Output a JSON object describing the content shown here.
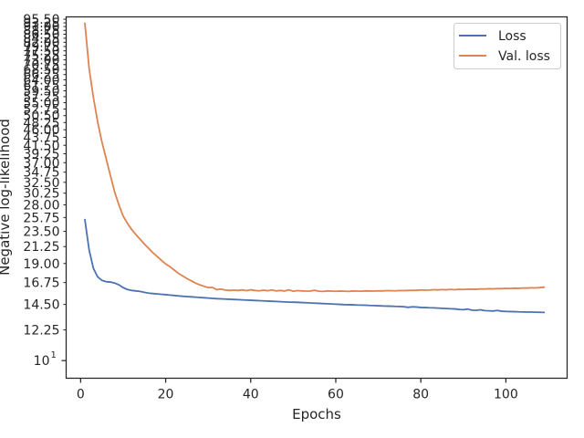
{
  "chart_data": {
    "type": "line",
    "xlabel": "Epochs",
    "ylabel": "Negative log-likelihood",
    "y_scale": "log",
    "xlim": [
      -3.4,
      114.4
    ],
    "ylim": [
      8.9,
      97.0
    ],
    "x_ticks": [
      0,
      20,
      40,
      60,
      80,
      100
    ],
    "y_tick_labels": [
      "95.50",
      "93.25",
      "91.00",
      "88.75",
      "86.50",
      "84.25",
      "82.00",
      "79.75",
      "77.50",
      "75.25",
      "73.00",
      "70.75",
      "68.50",
      "66.25",
      "64.00",
      "61.75",
      "59.50",
      "57.25",
      "55.00",
      "52.75",
      "50.50",
      "48.25",
      "46.00",
      "43.75",
      "41.50",
      "39.25",
      "37.00",
      "34.75",
      "32.50",
      "30.25",
      "28.00",
      "25.75",
      "23.50",
      "21.25",
      "19.00",
      "16.75",
      "14.50",
      "12.25"
    ],
    "y_major_label": "10",
    "y_major_label_exp": "1",
    "legend_position": "upper right",
    "grid": false,
    "series": [
      {
        "name": "Loss",
        "color": "#4c72b0",
        "x": [
          1,
          2,
          3,
          4,
          5,
          6,
          7,
          8,
          9,
          10,
          11,
          12,
          13,
          14,
          15,
          16,
          17,
          18,
          19,
          20,
          21,
          22,
          23,
          24,
          25,
          26,
          27,
          28,
          29,
          30,
          31,
          32,
          33,
          34,
          35,
          36,
          37,
          38,
          39,
          40,
          41,
          42,
          43,
          44,
          45,
          46,
          47,
          48,
          49,
          50,
          51,
          52,
          53,
          54,
          55,
          56,
          57,
          58,
          59,
          60,
          61,
          62,
          63,
          64,
          65,
          66,
          67,
          68,
          69,
          70,
          71,
          72,
          73,
          74,
          75,
          76,
          77,
          78,
          79,
          80,
          81,
          82,
          83,
          84,
          85,
          86,
          87,
          88,
          89,
          90,
          91,
          92,
          93,
          94,
          95,
          96,
          97,
          98,
          99,
          100,
          101,
          102,
          103,
          104,
          105,
          106,
          107,
          108,
          109
        ],
        "values": [
          25.4,
          20.8,
          18.4,
          17.4,
          17.0,
          16.85,
          16.8,
          16.7,
          16.5,
          16.2,
          16.0,
          15.9,
          15.85,
          15.8,
          15.7,
          15.62,
          15.58,
          15.54,
          15.5,
          15.46,
          15.42,
          15.38,
          15.34,
          15.3,
          15.27,
          15.24,
          15.21,
          15.18,
          15.15,
          15.12,
          15.09,
          15.06,
          15.04,
          15.02,
          15.0,
          14.98,
          14.96,
          14.94,
          14.92,
          14.9,
          14.88,
          14.86,
          14.84,
          14.82,
          14.8,
          14.78,
          14.76,
          14.74,
          14.72,
          14.71,
          14.7,
          14.68,
          14.66,
          14.64,
          14.62,
          14.6,
          14.58,
          14.56,
          14.54,
          14.52,
          14.5,
          14.48,
          14.47,
          14.46,
          14.44,
          14.43,
          14.42,
          14.4,
          14.39,
          14.37,
          14.35,
          14.34,
          14.33,
          14.31,
          14.3,
          14.28,
          14.22,
          14.27,
          14.25,
          14.21,
          14.2,
          14.18,
          14.17,
          14.15,
          14.13,
          14.11,
          14.09,
          14.07,
          14.02,
          14.0,
          14.06,
          13.96,
          13.94,
          13.99,
          13.92,
          13.9,
          13.88,
          13.93,
          13.86,
          13.84,
          13.83,
          13.82,
          13.8,
          13.79,
          13.78,
          13.78,
          13.77,
          13.76,
          13.75
        ]
      },
      {
        "name": "Val. loss",
        "color": "#dd8452",
        "x": [
          1,
          2,
          3,
          4,
          5,
          6,
          7,
          8,
          9,
          10,
          11,
          12,
          13,
          14,
          15,
          16,
          17,
          18,
          19,
          20,
          21,
          22,
          23,
          24,
          25,
          26,
          27,
          28,
          29,
          30,
          31,
          32,
          33,
          34,
          35,
          36,
          37,
          38,
          39,
          40,
          41,
          42,
          43,
          44,
          45,
          46,
          47,
          48,
          49,
          50,
          51,
          52,
          53,
          54,
          55,
          56,
          57,
          58,
          59,
          60,
          61,
          62,
          63,
          64,
          65,
          66,
          67,
          68,
          69,
          70,
          71,
          72,
          73,
          74,
          75,
          76,
          77,
          78,
          79,
          80,
          81,
          82,
          83,
          84,
          85,
          86,
          87,
          88,
          89,
          90,
          91,
          92,
          93,
          94,
          95,
          96,
          97,
          98,
          99,
          100,
          101,
          102,
          103,
          104,
          105,
          106,
          107,
          108,
          109
        ],
        "values": [
          93.0,
          69.0,
          57.0,
          48.5,
          42.5,
          38.0,
          34.0,
          30.5,
          28.0,
          26.0,
          24.8,
          23.8,
          23.0,
          22.3,
          21.6,
          21.0,
          20.4,
          19.9,
          19.4,
          18.95,
          18.6,
          18.2,
          17.8,
          17.5,
          17.2,
          16.95,
          16.7,
          16.5,
          16.35,
          16.2,
          16.22,
          15.98,
          16.05,
          15.94,
          15.9,
          15.93,
          15.9,
          15.96,
          15.88,
          15.97,
          15.9,
          15.86,
          15.93,
          15.87,
          15.95,
          15.85,
          15.9,
          15.84,
          15.96,
          15.82,
          15.88,
          15.85,
          15.83,
          15.84,
          15.92,
          15.82,
          15.8,
          15.85,
          15.83,
          15.81,
          15.84,
          15.82,
          15.8,
          15.84,
          15.83,
          15.82,
          15.85,
          15.84,
          15.83,
          15.86,
          15.85,
          15.88,
          15.87,
          15.86,
          15.89,
          15.88,
          15.9,
          15.92,
          15.91,
          15.95,
          15.93,
          15.94,
          15.98,
          15.96,
          15.99,
          15.97,
          16.01,
          15.98,
          16.02,
          16.0,
          16.04,
          16.03,
          16.02,
          16.06,
          16.05,
          16.08,
          16.07,
          16.1,
          16.09,
          16.12,
          16.11,
          16.14,
          16.13,
          16.16,
          16.15,
          16.18,
          16.17,
          16.2,
          16.25
        ]
      }
    ]
  }
}
